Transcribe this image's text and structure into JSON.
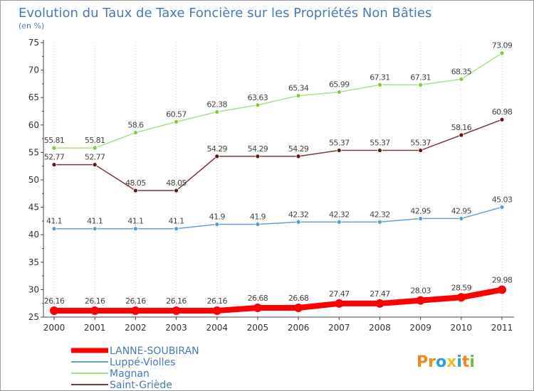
{
  "chart_data": {
    "type": "line",
    "title": "Evolution du Taux de Taxe Foncière sur les Propriétés Non Bâties",
    "subtitle": "(en %)",
    "xlabel": "",
    "ylabel": "(en %)",
    "categories": [
      "2000",
      "2001",
      "2002",
      "2003",
      "2004",
      "2005",
      "2006",
      "2007",
      "2008",
      "2009",
      "2010",
      "2011"
    ],
    "ylim": [
      25,
      75
    ],
    "yticks": [
      25,
      30,
      35,
      40,
      45,
      50,
      55,
      60,
      65,
      70,
      75
    ],
    "grid": "vertical dotted",
    "legend_position": "bottom-left",
    "series": [
      {
        "name": "LANNE-SOUBIRAN",
        "color": "#ff0000",
        "marker_color": "#ff0000",
        "values": [
          26.16,
          26.16,
          26.16,
          26.16,
          26.16,
          26.68,
          26.68,
          27.47,
          27.47,
          28.03,
          28.59,
          29.98
        ],
        "labels": [
          "26.16",
          "26.16",
          "26.16",
          "26.16",
          "26.16",
          "26.68",
          "26.68",
          "27.47",
          "27.47",
          "28.03",
          "28.59",
          "29.98"
        ]
      },
      {
        "name": "Luppé-Violles",
        "color": "#6a9fd0",
        "marker_color": "#5b9bd5",
        "values": [
          41.1,
          41.1,
          41.1,
          41.1,
          41.9,
          41.9,
          42.32,
          42.32,
          42.32,
          42.95,
          42.95,
          45.03
        ],
        "labels": [
          "41.1",
          "41.1",
          "41.1",
          "41.1",
          "41.9",
          "41.9",
          "42.32",
          "42.32",
          "42.32",
          "42.95",
          "42.95",
          "45.03"
        ]
      },
      {
        "name": "Magnan",
        "color": "#a8e08a",
        "marker_color": "#7ecc3a",
        "values": [
          55.81,
          55.81,
          58.6,
          60.57,
          62.38,
          63.63,
          65.34,
          65.99,
          67.31,
          67.31,
          68.35,
          73.09
        ],
        "labels": [
          "55.81",
          "55.81",
          "58.6",
          "60.57",
          "62.38",
          "63.63",
          "65.34",
          "65.99",
          "67.31",
          "67.31",
          "68.35",
          "73.09"
        ]
      },
      {
        "name": "Saint-Griède",
        "color": "#7a3a3a",
        "marker_color": "#5a1a1a",
        "values": [
          52.77,
          52.77,
          48.05,
          48.05,
          54.29,
          54.29,
          54.29,
          55.37,
          55.37,
          55.37,
          58.16,
          60.98
        ],
        "labels": [
          "52.77",
          "52.77",
          "48.05",
          "48.05",
          "54.29",
          "54.29",
          "54.29",
          "55.37",
          "55.37",
          "55.37",
          "58.16",
          "60.98"
        ]
      }
    ]
  },
  "logo": {
    "text": "Proxiti",
    "letters": [
      {
        "ch": "P",
        "color": "#f08a24"
      },
      {
        "ch": "r",
        "color": "#f08a24"
      },
      {
        "ch": "o",
        "color": "#2d9ee0"
      },
      {
        "ch": "x",
        "color": "#e8c22a"
      },
      {
        "ch": "i",
        "color": "#2d9ee0"
      },
      {
        "ch": "t",
        "color": "#f08a24"
      },
      {
        "ch": "i",
        "color": "#6fbf3a"
      }
    ]
  }
}
